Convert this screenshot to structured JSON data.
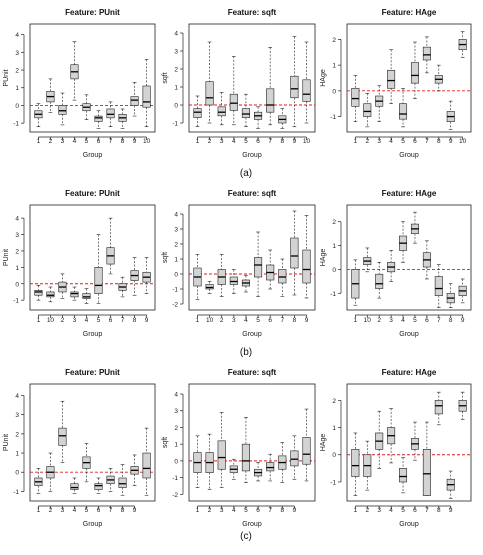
{
  "captions": [
    "(a)",
    "(b)",
    "(c)"
  ],
  "chart_data": [
    {
      "type": "boxplot",
      "title": "Feature: PUnit",
      "xlabel": "Group",
      "ylabel": "PUnit",
      "categories": [
        "1",
        "2",
        "3",
        "4",
        "5",
        "6",
        "7",
        "8",
        "9",
        "10"
      ],
      "ylim": [
        -1.5,
        4.6
      ],
      "yticks": [
        -1,
        0,
        1,
        2,
        3,
        4
      ],
      "reference_line": 0,
      "boxes": [
        {
          "low": -1.2,
          "q1": -0.7,
          "median": -0.5,
          "q3": -0.3,
          "high": 0.1
        },
        {
          "low": -0.4,
          "q1": 0.2,
          "median": 0.5,
          "q3": 0.8,
          "high": 1.5
        },
        {
          "low": -1.1,
          "q1": -0.5,
          "median": -0.3,
          "q3": 0.0,
          "high": 0.7
        },
        {
          "low": 0.3,
          "q1": 1.5,
          "median": 1.9,
          "q3": 2.3,
          "high": 3.6
        },
        {
          "low": -0.8,
          "q1": -0.3,
          "median": -0.1,
          "q3": 0.1,
          "high": 0.6
        },
        {
          "low": -1.3,
          "q1": -0.9,
          "median": -0.7,
          "q3": -0.6,
          "high": -0.3
        },
        {
          "low": -1.2,
          "q1": -0.7,
          "median": -0.5,
          "q3": -0.2,
          "high": 0.2
        },
        {
          "low": -1.3,
          "q1": -0.9,
          "median": -0.7,
          "q3": -0.5,
          "high": -0.2
        },
        {
          "low": -0.6,
          "q1": 0.0,
          "median": 0.3,
          "q3": 0.5,
          "high": 1.3
        },
        {
          "low": -1.2,
          "q1": -0.1,
          "median": 0.2,
          "q3": 1.1,
          "high": 2.6
        }
      ]
    },
    {
      "type": "boxplot",
      "title": "Feature: sqft",
      "xlabel": "Group",
      "ylabel": "sqft",
      "categories": [
        "1",
        "2",
        "3",
        "4",
        "5",
        "6",
        "7",
        "8",
        "9",
        "10"
      ],
      "ylim": [
        -1.5,
        4.5
      ],
      "yticks": [
        -1,
        0,
        1,
        2,
        3,
        4
      ],
      "reference_line": 0,
      "boxes": [
        {
          "low": -1.2,
          "q1": -0.7,
          "median": -0.4,
          "q3": -0.2,
          "high": 0.5
        },
        {
          "low": -1.0,
          "q1": 0.0,
          "median": 0.4,
          "q3": 1.3,
          "high": 3.5
        },
        {
          "low": -1.1,
          "q1": -0.6,
          "median": -0.4,
          "q3": -0.1,
          "high": 0.7
        },
        {
          "low": -1.1,
          "q1": -0.3,
          "median": 0.1,
          "q3": 0.6,
          "high": 2.7
        },
        {
          "low": -1.2,
          "q1": -0.7,
          "median": -0.5,
          "q3": -0.2,
          "high": 0.6
        },
        {
          "low": -1.3,
          "q1": -0.8,
          "median": -0.6,
          "q3": -0.4,
          "high": -0.1
        },
        {
          "low": -1.1,
          "q1": -0.4,
          "median": 0.0,
          "q3": 0.9,
          "high": 3.2
        },
        {
          "low": -1.3,
          "q1": -1.0,
          "median": -0.8,
          "q3": -0.6,
          "high": -0.2
        },
        {
          "low": -1.2,
          "q1": 0.4,
          "median": 0.9,
          "q3": 1.6,
          "high": 3.8
        },
        {
          "low": -1.0,
          "q1": 0.2,
          "median": 0.6,
          "q3": 1.4,
          "high": 3.5
        }
      ]
    },
    {
      "type": "boxplot",
      "title": "Feature: HAge",
      "xlabel": "Group",
      "ylabel": "HAge",
      "categories": [
        "1",
        "2",
        "3",
        "4",
        "5",
        "6",
        "7",
        "8",
        "9",
        "10"
      ],
      "ylim": [
        -1.6,
        2.6
      ],
      "yticks": [
        -1,
        0,
        1,
        2
      ],
      "reference_line": 0,
      "boxes": [
        {
          "low": -1.2,
          "q1": -0.6,
          "median": -0.3,
          "q3": 0.1,
          "high": 0.6
        },
        {
          "low": -1.4,
          "q1": -1.0,
          "median": -0.8,
          "q3": -0.5,
          "high": -0.1
        },
        {
          "low": -1.2,
          "q1": -0.6,
          "median": -0.4,
          "q3": -0.2,
          "high": 0.2
        },
        {
          "low": -0.5,
          "q1": 0.1,
          "median": 0.4,
          "q3": 0.8,
          "high": 1.6
        },
        {
          "low": -1.4,
          "q1": -1.1,
          "median": -0.9,
          "q3": -0.5,
          "high": 0.1
        },
        {
          "low": -0.3,
          "q1": 0.3,
          "median": 0.6,
          "q3": 1.1,
          "high": 1.9
        },
        {
          "low": 0.7,
          "q1": 1.2,
          "median": 1.4,
          "q3": 1.7,
          "high": 2.1
        },
        {
          "low": 0.0,
          "q1": 0.3,
          "median": 0.45,
          "q3": 0.6,
          "high": 1.0
        },
        {
          "low": -1.5,
          "q1": -1.2,
          "median": -1.0,
          "q3": -0.8,
          "high": -0.4
        },
        {
          "low": 1.3,
          "q1": 1.6,
          "median": 1.8,
          "q3": 2.0,
          "high": 2.3
        }
      ]
    },
    {
      "type": "boxplot",
      "title": "Feature: PUnit",
      "xlabel": "Group",
      "ylabel": "PUnit",
      "categories": [
        "1",
        "10",
        "2",
        "3",
        "4",
        "5",
        "6",
        "7",
        "8",
        "9"
      ],
      "ylim": [
        -1.6,
        4.8
      ],
      "yticks": [
        -1,
        0,
        1,
        2,
        3,
        4
      ],
      "reference_line": 0,
      "boxes": [
        {
          "low": -1.0,
          "q1": -0.7,
          "median": -0.5,
          "q3": -0.4,
          "high": -0.1
        },
        {
          "low": -1.1,
          "q1": -0.8,
          "median": -0.7,
          "q3": -0.5,
          "high": -0.2
        },
        {
          "low": -0.9,
          "q1": -0.5,
          "median": -0.2,
          "q3": 0.1,
          "high": 0.6
        },
        {
          "low": -1.0,
          "q1": -0.8,
          "median": -0.6,
          "q3": -0.5,
          "high": -0.2
        },
        {
          "low": -1.2,
          "q1": -0.9,
          "median": -0.8,
          "q3": -0.6,
          "high": -0.3
        },
        {
          "low": -1.2,
          "q1": -0.6,
          "median": -0.1,
          "q3": 1.0,
          "high": 3.0
        },
        {
          "low": 0.6,
          "q1": 1.2,
          "median": 1.7,
          "q3": 2.2,
          "high": 4.0
        },
        {
          "low": -0.8,
          "q1": -0.4,
          "median": -0.2,
          "q3": 0.0,
          "high": 0.4
        },
        {
          "low": -0.7,
          "q1": 0.2,
          "median": 0.5,
          "q3": 0.8,
          "high": 1.6
        },
        {
          "low": -0.6,
          "q1": 0.1,
          "median": 0.4,
          "q3": 0.7,
          "high": 1.6
        }
      ]
    },
    {
      "type": "boxplot",
      "title": "Feature: sqft",
      "xlabel": "Group",
      "ylabel": "sqft",
      "categories": [
        "1",
        "10",
        "2",
        "3",
        "4",
        "5",
        "6",
        "7",
        "8",
        "9"
      ],
      "ylim": [
        -2.4,
        4.6
      ],
      "yticks": [
        -2,
        -1,
        0,
        1,
        2,
        3,
        4
      ],
      "reference_line": 0,
      "boxes": [
        {
          "low": -1.7,
          "q1": -0.8,
          "median": -0.2,
          "q3": 0.4,
          "high": 1.3
        },
        {
          "low": -1.3,
          "q1": -1.0,
          "median": -0.9,
          "q3": -0.7,
          "high": -0.5
        },
        {
          "low": -1.5,
          "q1": -0.7,
          "median": -0.2,
          "q3": 0.3,
          "high": 1.3
        },
        {
          "low": -1.3,
          "q1": -0.7,
          "median": -0.5,
          "q3": -0.2,
          "high": 0.3
        },
        {
          "low": -1.2,
          "q1": -0.8,
          "median": -0.6,
          "q3": -0.4,
          "high": -0.1
        },
        {
          "low": -1.5,
          "q1": -0.2,
          "median": 0.6,
          "q3": 1.1,
          "high": 2.8
        },
        {
          "low": -1.0,
          "q1": -0.4,
          "median": 0.1,
          "q3": 0.6,
          "high": 1.6
        },
        {
          "low": -1.5,
          "q1": -0.6,
          "median": -0.2,
          "q3": 0.3,
          "high": 1.0
        },
        {
          "low": -1.4,
          "q1": 0.4,
          "median": 1.2,
          "q3": 2.4,
          "high": 4.2
        },
        {
          "low": -1.6,
          "q1": -0.6,
          "median": 0.3,
          "q3": 1.6,
          "high": 3.9
        }
      ]
    },
    {
      "type": "boxplot",
      "title": "Feature: HAge",
      "xlabel": "Group",
      "ylabel": "HAge",
      "categories": [
        "1",
        "10",
        "2",
        "3",
        "4",
        "5",
        "6",
        "7",
        "8",
        "9"
      ],
      "ylim": [
        -1.7,
        2.7
      ],
      "yticks": [
        -1,
        0,
        1,
        2
      ],
      "reference_line": 0,
      "boxes": [
        {
          "low": -1.5,
          "q1": -1.2,
          "median": -0.6,
          "q3": 0.0,
          "high": 0.4
        },
        {
          "low": -0.1,
          "q1": 0.2,
          "median": 0.35,
          "q3": 0.5,
          "high": 0.9
        },
        {
          "low": -1.2,
          "q1": -0.8,
          "median": -0.6,
          "q3": -0.2,
          "high": 0.3
        },
        {
          "low": -0.5,
          "q1": -0.1,
          "median": 0.1,
          "q3": 0.3,
          "high": 0.8
        },
        {
          "low": 0.3,
          "q1": 0.8,
          "median": 1.1,
          "q3": 1.4,
          "high": 2.0
        },
        {
          "low": 1.1,
          "q1": 1.5,
          "median": 1.7,
          "q3": 1.9,
          "high": 2.4
        },
        {
          "low": -0.4,
          "q1": 0.1,
          "median": 0.4,
          "q3": 0.7,
          "high": 1.2
        },
        {
          "low": -1.6,
          "q1": -1.1,
          "median": -0.8,
          "q3": -0.3,
          "high": 0.2
        },
        {
          "low": -1.6,
          "q1": -1.4,
          "median": -1.2,
          "q3": -1.0,
          "high": -0.6
        },
        {
          "low": -1.4,
          "q1": -1.1,
          "median": -0.9,
          "q3": -0.7,
          "high": -0.4
        }
      ]
    },
    {
      "type": "boxplot",
      "title": "Feature: PUnit",
      "xlabel": "Group",
      "ylabel": "PUnit",
      "categories": [
        "1",
        "2",
        "3",
        "4",
        "5",
        "6",
        "7",
        "8",
        "9",
        ""
      ],
      "ylim": [
        -1.5,
        4.6
      ],
      "yticks": [
        -1,
        0,
        1,
        2,
        3,
        4
      ],
      "reference_line": 0,
      "boxes": [
        {
          "low": -1.1,
          "q1": -0.7,
          "median": -0.5,
          "q3": -0.3,
          "high": 0.2
        },
        {
          "low": -1.0,
          "q1": -0.3,
          "median": 0.0,
          "q3": 0.3,
          "high": 1.0
        },
        {
          "low": 0.5,
          "q1": 1.4,
          "median": 1.9,
          "q3": 2.3,
          "high": 3.7
        },
        {
          "low": -1.1,
          "q1": -0.9,
          "median": -0.8,
          "q3": -0.6,
          "high": -0.3
        },
        {
          "low": -0.5,
          "q1": 0.2,
          "median": 0.5,
          "q3": 0.8,
          "high": 1.5
        },
        {
          "low": -1.1,
          "q1": -0.9,
          "median": -0.7,
          "q3": -0.6,
          "high": -0.3
        },
        {
          "low": -1.0,
          "q1": -0.6,
          "median": -0.4,
          "q3": -0.2,
          "high": 0.2
        },
        {
          "low": -1.2,
          "q1": -0.8,
          "median": -0.6,
          "q3": -0.3,
          "high": 0.4
        },
        {
          "low": -0.7,
          "q1": -0.1,
          "median": 0.1,
          "q3": 0.3,
          "high": 0.9
        },
        {
          "low": -1.2,
          "q1": -0.3,
          "median": 0.2,
          "q3": 1.0,
          "high": 2.3
        }
      ]
    },
    {
      "type": "boxplot",
      "title": "Feature: sqft",
      "xlabel": "Group",
      "ylabel": "sqft",
      "categories": [
        "1",
        "2",
        "3",
        "4",
        "5",
        "6",
        "7",
        "8",
        "9",
        ""
      ],
      "ylim": [
        -2.4,
        4.6
      ],
      "yticks": [
        -2,
        -1,
        0,
        1,
        2,
        3,
        4
      ],
      "reference_line": 0,
      "boxes": [
        {
          "low": -1.6,
          "q1": -0.7,
          "median": -0.1,
          "q3": 0.5,
          "high": 1.5
        },
        {
          "low": -1.7,
          "q1": -0.7,
          "median": -0.1,
          "q3": 0.5,
          "high": 1.6
        },
        {
          "low": -1.6,
          "q1": -0.5,
          "median": 0.2,
          "q3": 1.2,
          "high": 2.9
        },
        {
          "low": -1.1,
          "q1": -0.7,
          "median": -0.5,
          "q3": -0.3,
          "high": 0.1
        },
        {
          "low": -1.3,
          "q1": -0.6,
          "median": 0.0,
          "q3": 1.0,
          "high": 2.6
        },
        {
          "low": -1.2,
          "q1": -0.9,
          "median": -0.7,
          "q3": -0.5,
          "high": -0.1
        },
        {
          "low": -1.2,
          "q1": -0.6,
          "median": -0.4,
          "q3": -0.1,
          "high": 0.4
        },
        {
          "low": -1.3,
          "q1": -0.5,
          "median": -0.1,
          "q3": 0.3,
          "high": 1.1
        },
        {
          "low": -1.1,
          "q1": -0.3,
          "median": 0.1,
          "q3": 0.6,
          "high": 1.5
        },
        {
          "low": -1.2,
          "q1": -0.2,
          "median": 0.4,
          "q3": 1.4,
          "high": 3.1
        }
      ]
    },
    {
      "type": "boxplot",
      "title": "Feature: HAge",
      "xlabel": "Group",
      "ylabel": "HAge",
      "categories": [
        "1",
        "2",
        "3",
        "4",
        "5",
        "6",
        "7",
        "8",
        "9",
        ""
      ],
      "ylim": [
        -1.7,
        2.6
      ],
      "yticks": [
        -1,
        0,
        1,
        2
      ],
      "reference_line": 0,
      "boxes": [
        {
          "low": -1.5,
          "q1": -0.8,
          "median": -0.4,
          "q3": 0.2,
          "high": 0.8
        },
        {
          "low": -1.3,
          "q1": -0.8,
          "median": -0.4,
          "q3": 0.0,
          "high": 0.5
        },
        {
          "low": -0.5,
          "q1": 0.2,
          "median": 0.5,
          "q3": 0.8,
          "high": 1.6
        },
        {
          "low": -0.3,
          "q1": 0.4,
          "median": 0.7,
          "q3": 1.0,
          "high": 1.7
        },
        {
          "low": -1.4,
          "q1": -1.0,
          "median": -0.8,
          "q3": -0.5,
          "high": -0.1
        },
        {
          "low": -0.2,
          "q1": 0.2,
          "median": 0.4,
          "q3": 0.6,
          "high": 1.2
        },
        {
          "low": -1.5,
          "q1": -1.5,
          "median": -0.7,
          "q3": 0.2,
          "high": 1.2
        },
        {
          "low": 1.1,
          "q1": 1.5,
          "median": 1.8,
          "q3": 2.0,
          "high": 2.3
        },
        {
          "low": -1.6,
          "q1": -1.3,
          "median": -1.1,
          "q3": -0.9,
          "high": -0.6
        },
        {
          "low": 1.3,
          "q1": 1.6,
          "median": 1.8,
          "q3": 2.0,
          "high": 2.3
        }
      ]
    }
  ]
}
